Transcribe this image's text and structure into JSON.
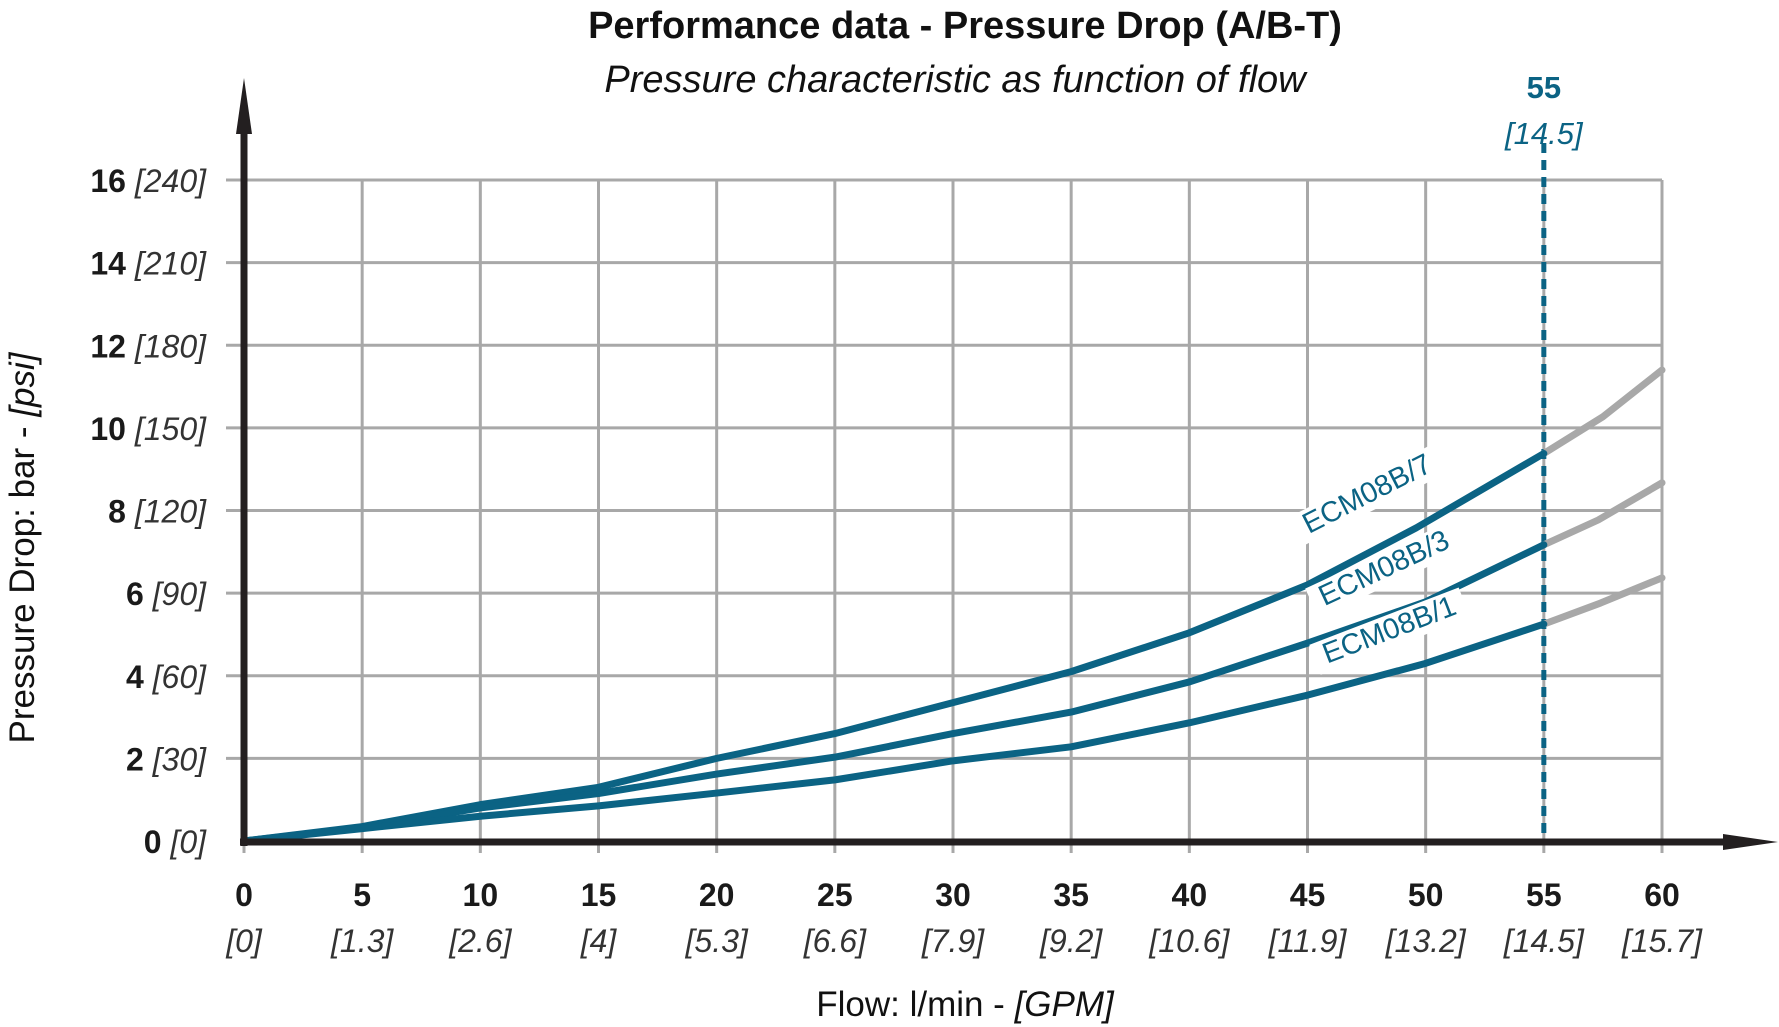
{
  "chart_data": {
    "type": "line",
    "title": "Performance data - Pressure Drop (A/B-T)",
    "subtitle": "Pressure characteristic as function of flow",
    "xlabel": "Flow: l/min -",
    "xlabel_alt": "[GPM]",
    "ylabel": "Pressure Drop: bar -",
    "ylabel_alt": "[psi]",
    "xlim": [
      0,
      60
    ],
    "ylim": [
      0,
      16
    ],
    "grid": true,
    "x_ticks": [
      {
        "value": 0,
        "label": "0",
        "alt": "[0]"
      },
      {
        "value": 5,
        "label": "5",
        "alt": "[1.3]"
      },
      {
        "value": 10,
        "label": "10",
        "alt": "[2.6]"
      },
      {
        "value": 15,
        "label": "15",
        "alt": "[4]"
      },
      {
        "value": 20,
        "label": "20",
        "alt": "[5.3]"
      },
      {
        "value": 25,
        "label": "25",
        "alt": "[6.6]"
      },
      {
        "value": 30,
        "label": "30",
        "alt": "[7.9]"
      },
      {
        "value": 35,
        "label": "35",
        "alt": "[9.2]"
      },
      {
        "value": 40,
        "label": "40",
        "alt": "[10.6]"
      },
      {
        "value": 45,
        "label": "45",
        "alt": "[11.9]"
      },
      {
        "value": 50,
        "label": "50",
        "alt": "[13.2]"
      },
      {
        "value": 55,
        "label": "55",
        "alt": "[14.5]"
      },
      {
        "value": 60,
        "label": "60",
        "alt": "[15.7]"
      }
    ],
    "y_ticks": [
      {
        "value": 0,
        "label": "0",
        "alt": "[0]"
      },
      {
        "value": 2,
        "label": "2",
        "alt": "[30]"
      },
      {
        "value": 4,
        "label": "4",
        "alt": "[60]"
      },
      {
        "value": 6,
        "label": "6",
        "alt": "[90]"
      },
      {
        "value": 8,
        "label": "8",
        "alt": "[120]"
      },
      {
        "value": 10,
        "label": "10",
        "alt": "[150]"
      },
      {
        "value": 12,
        "label": "12",
        "alt": "[180]"
      },
      {
        "value": 14,
        "label": "14",
        "alt": "[210]"
      },
      {
        "value": 16,
        "label": "16",
        "alt": "[240]"
      }
    ],
    "reference_line": {
      "x": 55,
      "label": "55",
      "alt": "[14.5]",
      "style": "dashed",
      "color": "#0b6384"
    },
    "series": [
      {
        "name": "ECM08B/7",
        "color": "#0b6384",
        "extension_color": "#a8a8a8",
        "x": [
          0,
          5,
          10,
          15,
          20,
          25,
          30,
          35,
          40,
          45,
          49.6,
          55
        ],
        "y": [
          0,
          0.35,
          0.88,
          1.3,
          2.0,
          2.6,
          3.35,
          4.1,
          5.04,
          6.2,
          7.58,
          9.38
        ],
        "extension_x": [
          55,
          57.5,
          60
        ],
        "extension_y": [
          9.38,
          10.27,
          11.4
        ]
      },
      {
        "name": "ECM08B/3",
        "color": "#0b6384",
        "extension_color": "#a8a8a8",
        "x": [
          0,
          5,
          10,
          15,
          20,
          25,
          30,
          35,
          40,
          45,
          50,
          55
        ],
        "y": [
          0,
          0.33,
          0.8,
          1.15,
          1.62,
          2.03,
          2.6,
          3.12,
          3.85,
          4.79,
          5.79,
          7.17
        ],
        "extension_x": [
          55,
          57.3,
          60
        ],
        "extension_y": [
          7.17,
          7.77,
          8.67
        ]
      },
      {
        "name": "ECM08B/1",
        "color": "#0b6384",
        "extension_color": "#a8a8a8",
        "x": [
          0,
          5,
          10,
          15,
          20,
          25,
          30,
          35,
          40,
          45,
          50,
          55
        ],
        "y": [
          0,
          0.3,
          0.6,
          0.85,
          1.16,
          1.48,
          1.94,
          2.28,
          2.86,
          3.53,
          4.3,
          5.25
        ],
        "extension_x": [
          55,
          57.4,
          60
        ],
        "extension_y": [
          5.25,
          5.76,
          6.37
        ]
      }
    ]
  }
}
